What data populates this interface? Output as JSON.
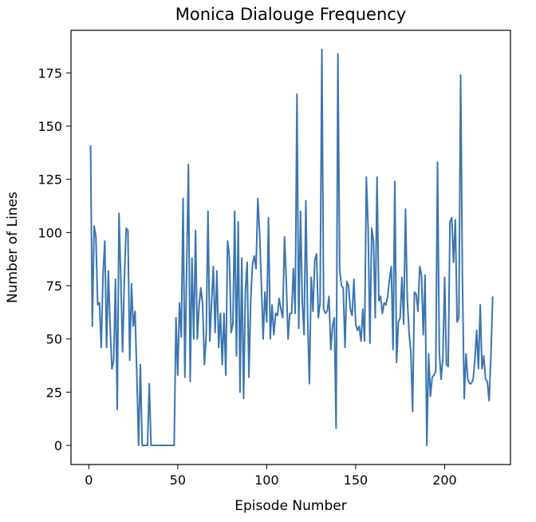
{
  "chart_data": {
    "type": "line",
    "title": "Monica Dialouge Frequency",
    "xlabel": "Episode Number",
    "ylabel": "Number of Lines",
    "xlim": [
      -10,
      237
    ],
    "ylim": [
      -9,
      195
    ],
    "xticks": [
      0,
      50,
      100,
      150,
      200
    ],
    "yticks": [
      0,
      25,
      50,
      75,
      100,
      125,
      150,
      175
    ],
    "grid": false,
    "legend": "none",
    "series": [
      {
        "color": "#3a75b0",
        "x": [
          1,
          2,
          3,
          4,
          5,
          6,
          7,
          8,
          9,
          10,
          11,
          12,
          13,
          14,
          15,
          16,
          17,
          18,
          19,
          20,
          21,
          22,
          23,
          24,
          25,
          26,
          27,
          28,
          29,
          30,
          31,
          32,
          33,
          34,
          35,
          36,
          37,
          38,
          39,
          40,
          41,
          42,
          43,
          44,
          45,
          46,
          47,
          48,
          49,
          50,
          51,
          52,
          53,
          54,
          55,
          56,
          57,
          58,
          59,
          60,
          61,
          62,
          63,
          64,
          65,
          66,
          67,
          68,
          69,
          70,
          71,
          72,
          73,
          74,
          75,
          76,
          77,
          78,
          79,
          80,
          81,
          82,
          83,
          84,
          85,
          86,
          87,
          88,
          89,
          90,
          91,
          92,
          93,
          94,
          95,
          96,
          97,
          98,
          99,
          100,
          101,
          102,
          103,
          104,
          105,
          106,
          107,
          108,
          109,
          110,
          111,
          112,
          113,
          114,
          115,
          116,
          117,
          118,
          119,
          120,
          121,
          122,
          123,
          124,
          125,
          126,
          127,
          128,
          129,
          130,
          131,
          132,
          133,
          134,
          135,
          136,
          137,
          138,
          139,
          140,
          141,
          142,
          143,
          144,
          145,
          146,
          147,
          148,
          149,
          150,
          151,
          152,
          153,
          154,
          155,
          156,
          157,
          158,
          159,
          160,
          161,
          162,
          163,
          164,
          165,
          166,
          167,
          168,
          169,
          170,
          171,
          172,
          173,
          174,
          175,
          176,
          177,
          178,
          179,
          180,
          181,
          182,
          183,
          184,
          185,
          186,
          187,
          188,
          189,
          190,
          191,
          192,
          193,
          194,
          195,
          196,
          197,
          198,
          199,
          200,
          201,
          202,
          203,
          204,
          205,
          206,
          207,
          208,
          209,
          210,
          211,
          212,
          213,
          214,
          215,
          216,
          217,
          218,
          219,
          220,
          221,
          222,
          223,
          224,
          225,
          226,
          227
        ],
        "y": [
          141,
          56,
          103,
          98,
          66,
          67,
          46,
          80,
          96,
          46,
          82,
          56,
          36,
          40,
          78,
          17,
          109,
          78,
          44,
          78,
          102,
          101,
          40,
          76,
          56,
          63,
          33,
          0,
          38,
          0,
          0,
          0,
          0,
          29,
          0,
          0,
          0,
          0,
          0,
          0,
          0,
          0,
          0,
          0,
          0,
          0,
          0,
          0,
          60,
          33,
          67,
          51,
          116,
          32,
          83,
          132,
          30,
          88,
          50,
          101,
          50,
          66,
          74,
          66,
          38,
          52,
          110,
          49,
          67,
          84,
          53,
          82,
          46,
          62,
          38,
          62,
          33,
          96,
          89,
          53,
          57,
          110,
          42,
          105,
          25,
          88,
          22,
          72,
          86,
          32,
          68,
          85,
          89,
          83,
          116,
          100,
          76,
          50,
          72,
          58,
          107,
          50,
          66,
          52,
          62,
          61,
          69,
          64,
          60,
          98,
          77,
          50,
          62,
          62,
          83,
          62,
          165,
          55,
          110,
          67,
          52,
          115,
          60,
          29,
          79,
          63,
          87,
          90,
          60,
          67,
          186,
          64,
          62,
          63,
          70,
          45,
          56,
          60,
          8,
          184,
          83,
          75,
          74,
          46,
          77,
          75,
          64,
          61,
          78,
          57,
          54,
          56,
          49,
          64,
          49,
          126,
          102,
          48,
          102,
          96,
          60,
          126,
          68,
          70,
          62,
          67,
          66,
          70,
          78,
          84,
          45,
          124,
          39,
          58,
          60,
          79,
          57,
          111,
          69,
          53,
          44,
          16,
          72,
          71,
          63,
          84,
          80,
          52,
          80,
          0,
          43,
          23,
          32,
          33,
          35,
          133,
          44,
          31,
          41,
          79,
          38,
          37,
          105,
          107,
          86,
          106,
          58,
          60,
          174,
          78,
          22,
          43,
          31,
          29,
          29,
          31,
          40,
          54,
          36,
          66,
          36,
          42,
          31,
          30,
          21,
          42,
          70
        ]
      }
    ]
  }
}
